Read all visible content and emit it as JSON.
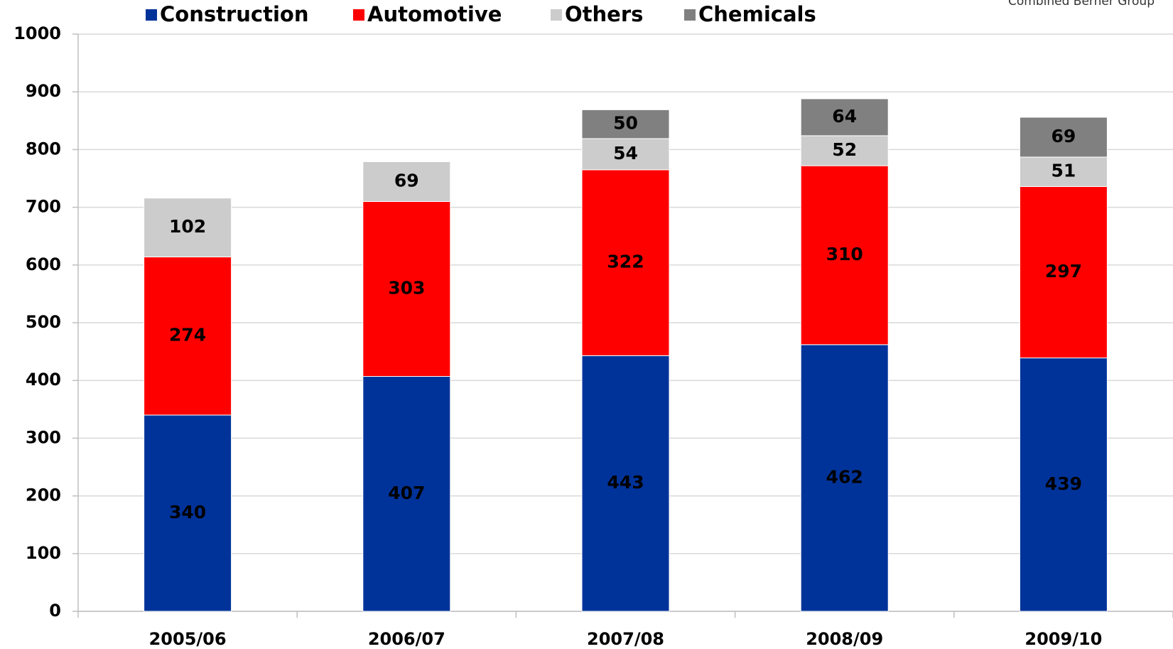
{
  "chart_data": {
    "type": "bar",
    "stacked": true,
    "annotation": "Combined Berner Group",
    "categories": [
      "2005/06",
      "2006/07",
      "2007/08",
      "2008/09",
      "2009/10"
    ],
    "series": [
      {
        "name": "Construction",
        "color": "#003399",
        "label_color": "#ffffff",
        "values": [
          340,
          407,
          443,
          462,
          439
        ]
      },
      {
        "name": "Automotive",
        "color": "#ff0000",
        "label_color": "#000000",
        "values": [
          274,
          303,
          322,
          310,
          297
        ]
      },
      {
        "name": "Others",
        "color": "#cccccc",
        "label_color": "#000000",
        "values": [
          102,
          69,
          54,
          52,
          51
        ]
      },
      {
        "name": "Chemicals",
        "color": "#808080",
        "label_color": "#ffffff",
        "values": [
          null,
          null,
          50,
          64,
          69
        ]
      }
    ],
    "ylim": [
      0,
      1000
    ],
    "yticks": [
      0,
      100,
      200,
      300,
      400,
      500,
      600,
      700,
      800,
      900,
      1000
    ],
    "grid": true,
    "legend": "top"
  }
}
